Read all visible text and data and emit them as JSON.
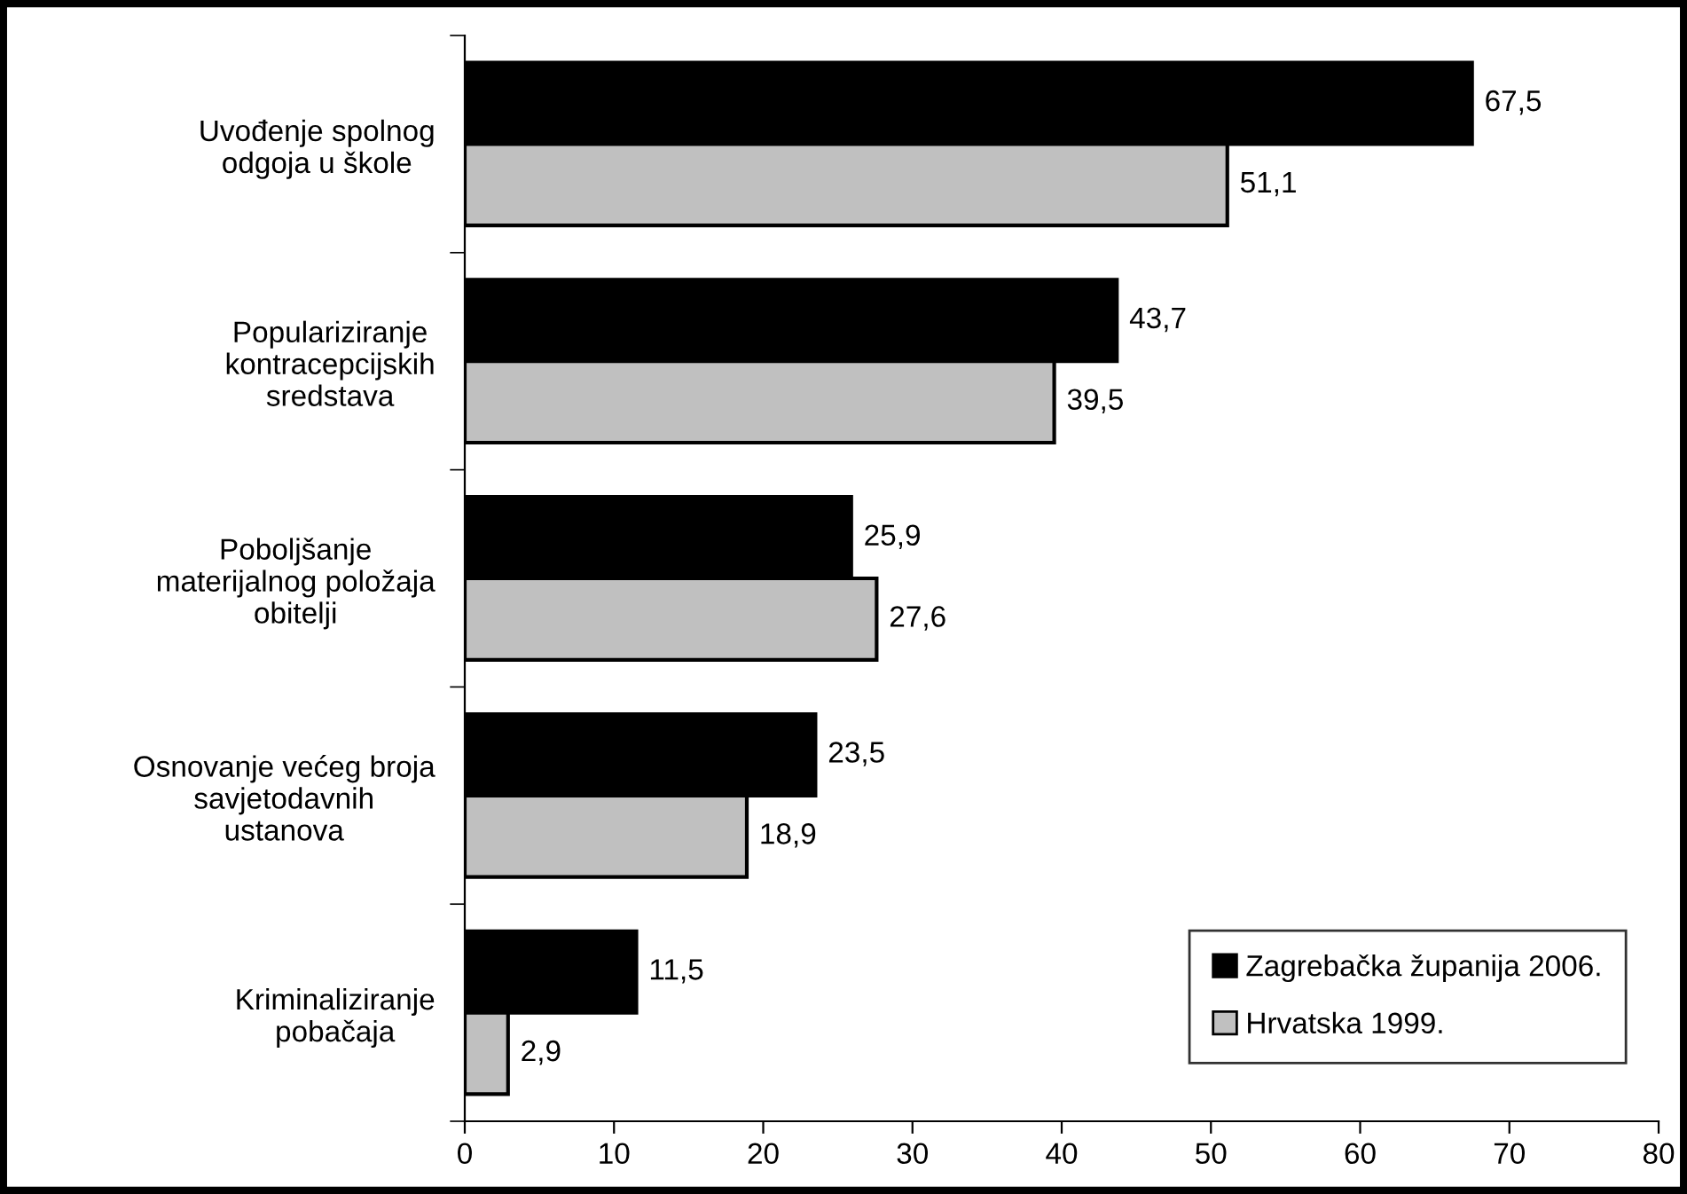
{
  "chart_data": {
    "type": "bar",
    "orientation": "horizontal",
    "categories": [
      "Uvođenje spolnog\nodgoja u škole",
      "Populariziranje\nkontracepcijskih\nsredstava",
      "Poboljšanje\nmaterijalnog položaja\nobitelji",
      "Osnovanje većeg broja\nsavjetodavnih\nustanova",
      "Kriminaliziranje\npobačaja"
    ],
    "series": [
      {
        "name": "Zagrebačka županija 2006.",
        "color": "#000000",
        "values": [
          67.5,
          43.7,
          25.9,
          23.5,
          11.5
        ],
        "value_labels": [
          "67,5",
          "43,7",
          "25,9",
          "23,5",
          "11,5"
        ]
      },
      {
        "name": "Hrvatska 1999.",
        "color": "#c0c0c0",
        "values": [
          51.1,
          39.5,
          27.6,
          18.9,
          2.9
        ],
        "value_labels": [
          "51,1",
          "39,5",
          "27,6",
          "18,9",
          "2,9"
        ]
      }
    ],
    "xlim": [
      0,
      80
    ],
    "xticks": [
      0,
      10,
      20,
      30,
      40,
      50,
      60,
      70,
      80
    ],
    "grid": false,
    "legend": "bottom right"
  }
}
